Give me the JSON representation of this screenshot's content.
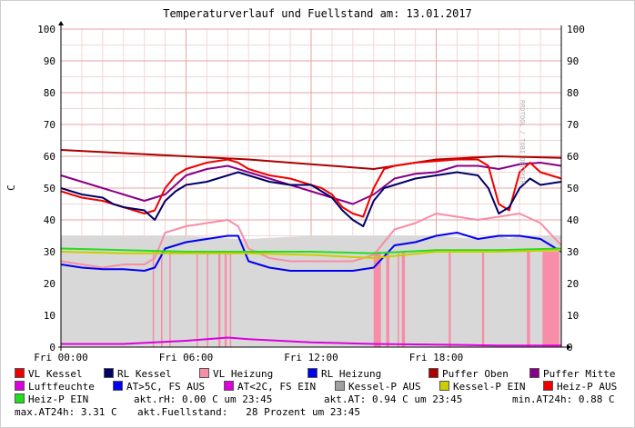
{
  "chart_data": {
    "type": "line",
    "title": "Temperaturverlauf und Fuellstand am: 13.01.2017",
    "ylabel": "C",
    "watermark": "RRDTOOL / TOBI OETIKER",
    "ylim": [
      0,
      100
    ],
    "y_ticks": [
      "0",
      "10",
      "20",
      "30",
      "40",
      "50",
      "60",
      "70",
      "80",
      "90",
      "100"
    ],
    "x_ticks": [
      "Fri 00:00",
      "Fri 06:00",
      "Fri 12:00",
      "Fri 18:00"
    ],
    "x_range_hours": [
      0,
      24
    ],
    "grid": true,
    "series": [
      {
        "name": "Kessel-P AUS",
        "style": "area",
        "color": "#a0a0a0",
        "x": [
          0,
          3,
          6,
          8.5,
          9,
          12,
          14,
          15,
          18,
          20,
          21,
          21.5,
          22,
          24
        ],
        "y": [
          35,
          35,
          35,
          34,
          34,
          35,
          35,
          35,
          35,
          34,
          35,
          34,
          35,
          35
        ]
      },
      {
        "name": "Heiz-P AUS",
        "style": "bars",
        "color": "#f78da7",
        "spans": [
          [
            4.4,
            4.45
          ],
          [
            4.8,
            4.85
          ],
          [
            5.2,
            5.25
          ],
          [
            6.5,
            6.55
          ],
          [
            7,
            7.05
          ],
          [
            7.55,
            7.65
          ],
          [
            7.85,
            7.95
          ],
          [
            8.1,
            8.15
          ],
          [
            15,
            15.35
          ],
          [
            15.6,
            15.75
          ],
          [
            16.15,
            16.2
          ],
          [
            16.35,
            16.5
          ],
          [
            18.6,
            18.7
          ],
          [
            20.2,
            20.3
          ],
          [
            22.35,
            22.5
          ],
          [
            23.1,
            23.9
          ]
        ],
        "value": 30
      },
      {
        "name": "Puffer Oben",
        "color": "#aa0000",
        "x": [
          0,
          3,
          6,
          9,
          12,
          15,
          18,
          21,
          24
        ],
        "y": [
          62,
          61,
          60,
          59,
          57.5,
          56,
          59,
          60,
          59.5
        ]
      },
      {
        "name": "Puffer Mitte",
        "color": "#880088",
        "x": [
          0,
          1,
          2,
          3,
          4,
          5,
          6,
          7,
          8,
          9,
          10,
          11,
          12,
          13,
          14,
          15,
          16,
          17,
          18,
          19,
          20,
          21,
          22,
          23,
          24
        ],
        "y": [
          54,
          52,
          50,
          48,
          46,
          48,
          54,
          56,
          57,
          55,
          53,
          51,
          49,
          47,
          45,
          48,
          53,
          54.5,
          55,
          57,
          57,
          56,
          57.5,
          58,
          57
        ]
      },
      {
        "name": "VL Kessel",
        "color": "#ee0000",
        "x": [
          0,
          1,
          2,
          2.5,
          3,
          4,
          4.5,
          5,
          5.5,
          6,
          7,
          8,
          8.5,
          9,
          10,
          11,
          12,
          12.5,
          13,
          13.5,
          14,
          14.5,
          15,
          15.5,
          16,
          17,
          18,
          19,
          20,
          20.5,
          21,
          21.5,
          22,
          22.5,
          23,
          24
        ],
        "y": [
          49,
          47,
          46,
          45,
          44,
          42,
          43,
          50,
          54,
          56,
          58,
          59,
          58,
          56,
          54,
          53,
          51,
          50,
          48,
          44,
          42,
          41,
          50,
          56,
          57,
          58,
          58.5,
          59,
          59,
          57,
          45,
          43,
          55,
          58,
          55,
          53
        ]
      },
      {
        "name": "RL Kessel",
        "color": "#000066",
        "x": [
          0,
          1,
          2,
          2.5,
          3,
          4,
          4.5,
          5,
          5.5,
          6,
          7,
          8,
          8.5,
          9,
          10,
          11,
          12,
          12.5,
          13,
          13.5,
          14,
          14.5,
          15,
          15.5,
          16,
          17,
          18,
          19,
          20,
          20.5,
          21,
          21.5,
          22,
          22.5,
          23,
          24
        ],
        "y": [
          50,
          48,
          47,
          45,
          44,
          43,
          40,
          46,
          49,
          51,
          52,
          54,
          55,
          54,
          52,
          51,
          51,
          49,
          47,
          43,
          40,
          38,
          46,
          50,
          51,
          53,
          54,
          55,
          54,
          50,
          42,
          44,
          50,
          53,
          51,
          52
        ]
      },
      {
        "name": "VL Heizung",
        "color": "#f78da7",
        "x": [
          0,
          1,
          2,
          3,
          4,
          4.5,
          5,
          6,
          7,
          8,
          8.5,
          9,
          10,
          11,
          12,
          13,
          14,
          15,
          16,
          17,
          18,
          19,
          20,
          21,
          22,
          23,
          24
        ],
        "y": [
          27,
          26,
          25,
          26,
          26,
          28,
          36,
          38,
          39,
          40,
          38,
          31,
          28,
          27,
          27,
          27,
          27,
          29,
          37,
          39,
          42,
          41,
          40,
          41,
          42,
          39,
          32
        ]
      },
      {
        "name": "RL Heizung",
        "color": "#0000ee",
        "x": [
          0,
          1,
          2,
          3,
          4,
          4.5,
          5,
          6,
          7,
          8,
          8.5,
          9,
          10,
          11,
          12,
          13,
          14,
          15,
          16,
          17,
          18,
          19,
          20,
          21,
          22,
          23,
          24
        ],
        "y": [
          26,
          25,
          24.5,
          24.5,
          24,
          25,
          31,
          33,
          34,
          35,
          35,
          27,
          25,
          24,
          24,
          24,
          24,
          25,
          32,
          33,
          35,
          36,
          34,
          35,
          35,
          34,
          30
        ]
      },
      {
        "name": "Heiz-P EIN",
        "color": "#22dd22",
        "x": [
          0,
          3,
          6,
          9,
          12,
          15,
          18,
          21,
          24
        ],
        "y": [
          31,
          30.5,
          30,
          30,
          30,
          29.5,
          30.5,
          30.5,
          31
        ]
      },
      {
        "name": "Kessel-P EIN",
        "color": "#cccc00",
        "x": [
          0,
          3,
          6,
          9,
          12,
          15,
          18,
          21,
          24
        ],
        "y": [
          30,
          29.5,
          29.5,
          29.5,
          29,
          28,
          30,
          30,
          30.5
        ]
      },
      {
        "name": "Luftfeuchte",
        "color": "#dd00dd",
        "x": [
          0,
          3,
          6,
          8,
          9,
          12,
          15,
          18,
          21,
          24
        ],
        "y": [
          1,
          1,
          2,
          3,
          2.5,
          1.5,
          1,
          0.8,
          0.5,
          0.5
        ]
      }
    ]
  },
  "legend": [
    {
      "label": "VL Kessel",
      "color": "#ee0000"
    },
    {
      "label": "RL Kessel",
      "color": "#000066"
    },
    {
      "label": "VL Heizung",
      "color": "#f78da7"
    },
    {
      "label": "RL Heizung",
      "color": "#0000ee"
    },
    {
      "label": "Puffer Oben",
      "color": "#aa0000"
    },
    {
      "label": "Puffer Mitte",
      "color": "#880088"
    },
    {
      "label": "Luftfeuchte",
      "color": "#dd00dd"
    },
    {
      "label": "AT>5C, FS AUS",
      "color": "#0000ee"
    },
    {
      "label": "AT<2C, FS EIN",
      "color": "#dd00dd"
    },
    {
      "label": "Kessel-P AUS",
      "color": "#a0a0a0"
    },
    {
      "label": "Kessel-P EIN",
      "color": "#cccc00"
    },
    {
      "label": "Heiz-P AUS",
      "color": "#ee0000"
    },
    {
      "label": "Heiz-P EIN",
      "color": "#22dd22"
    }
  ],
  "stats": {
    "rh": "akt.rH: 0.00 C um 23:45",
    "at": "akt.AT: 0.94 C um 23:45",
    "min": "min.AT24h: 0.88 C",
    "max": "max.AT24h: 3.31 C",
    "fuell": "akt.Fuellstand:   28 Prozent um 23:45"
  }
}
